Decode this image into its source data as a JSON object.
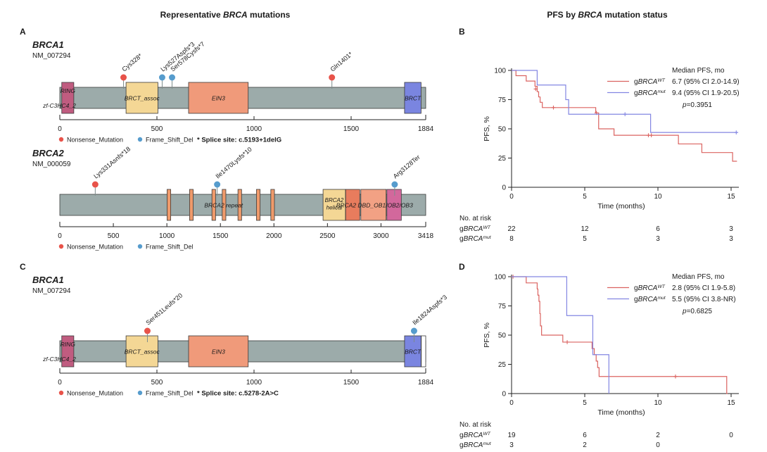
{
  "titles": {
    "left": {
      "prefix": "Representative ",
      "gene": "BRCA",
      "suffix": " mutations"
    },
    "right": {
      "prefix": "PFS by ",
      "gene": "BRCA",
      "suffix": " mutation status"
    }
  },
  "colors": {
    "protein_bar": "#9cabaa",
    "nonsense": "#e8534a",
    "frameshift": "#569ccd",
    "km_wt": "#db6360",
    "km_mut": "#8386e2"
  },
  "chart_data": [
    {
      "type": "lollipop",
      "panel": "A",
      "gene": "BRCA1",
      "transcript": "NM_007294",
      "protein_length": 1884,
      "xticks": [
        0,
        500,
        1000,
        1500,
        1884
      ],
      "mutations": [
        {
          "label": "Cys328*",
          "position": 328,
          "type": "Nonsense_Mutation"
        },
        {
          "label": "Lys527Aspfs*3",
          "position": 527,
          "type": "Frame_Shift_Del"
        },
        {
          "label": "Ser578Cysfs*7",
          "position": 578,
          "type": "Frame_Shift_Del"
        },
        {
          "label": "Gln1401*",
          "position": 1401,
          "type": "Nonsense_Mutation"
        }
      ],
      "domains": [
        {
          "name": "RING",
          "start": 10,
          "end": 72,
          "color": "#c05c80",
          "label": "RING",
          "label_below": "zf-C3HC4_2"
        },
        {
          "name": "BRCT_assoc",
          "start": 341,
          "end": 505,
          "color": "#f4d795",
          "label": "BRCT_assoc"
        },
        {
          "name": "EIN3",
          "start": 663,
          "end": 970,
          "color": "#f09a7a",
          "label": "EIN3"
        },
        {
          "name": "BRCT",
          "start": 1775,
          "end": 1860,
          "color": "#7a85e0",
          "label": "BRCT"
        }
      ],
      "overlay_labels": [],
      "legend": [
        {
          "label": "Nonsense_Mutation",
          "color": "#e8534a"
        },
        {
          "label": "Frame_Shift_Del",
          "color": "#569ccd"
        }
      ],
      "footnote": "* Splice site: c.5193+1delG"
    },
    {
      "type": "lollipop",
      "panel": "A",
      "gene": "BRCA2",
      "transcript": "NM_000059",
      "protein_length": 3418,
      "xticks": [
        0,
        500,
        1000,
        1500,
        2000,
        2500,
        3000,
        3418
      ],
      "mutations": [
        {
          "label": "Lys331Asnfs*18",
          "position": 331,
          "type": "Nonsense_Mutation"
        },
        {
          "label": "Ile1470Lysfs*10",
          "position": 1470,
          "type": "Frame_Shift_Del"
        },
        {
          "label": "Arg3128Ter",
          "position": 3128,
          "type": "Frame_Shift_Del"
        }
      ],
      "domains": [
        {
          "name": "BRCA2_repeat_1",
          "start": 1002,
          "end": 1036,
          "color": "#ef9a6b",
          "label": ""
        },
        {
          "name": "BRCA2_repeat_2",
          "start": 1212,
          "end": 1246,
          "color": "#ef9a6b",
          "label": ""
        },
        {
          "name": "BRCA2_repeat_3",
          "start": 1421,
          "end": 1455,
          "color": "#ef9a6b",
          "label": ""
        },
        {
          "name": "BRCA2_repeat_4",
          "start": 1517,
          "end": 1551,
          "color": "#ef9a6b",
          "label": ""
        },
        {
          "name": "BRCA2_repeat_5",
          "start": 1664,
          "end": 1698,
          "color": "#ef9a6b",
          "label": ""
        },
        {
          "name": "BRCA2_repeat_6",
          "start": 1837,
          "end": 1871,
          "color": "#ef9a6b",
          "label": ""
        },
        {
          "name": "BRCA2_repeat_7",
          "start": 1971,
          "end": 2005,
          "color": "#ef9a6b",
          "label": ""
        },
        {
          "name": "BRCA2_helical",
          "start": 2459,
          "end": 2668,
          "color": "#f4d795",
          "label": "BRCA2\nhelical"
        },
        {
          "name": "BRCA2_DBD_OB1",
          "start": 2670,
          "end": 2802,
          "color": "#e87c5d",
          "label": ""
        },
        {
          "name": "BRCA2_DBD_OB2",
          "start": 2812,
          "end": 3048,
          "color": "#f2a184",
          "label": ""
        },
        {
          "name": "BRCA2_DBD_OB3",
          "start": 3055,
          "end": 3190,
          "color": "#d2689c",
          "label": ""
        }
      ],
      "overlay_labels": [
        {
          "text": "BRCA2 repeat",
          "position": 1530
        },
        {
          "text": "BRCA2 DBD_OB1/OB2/OB3",
          "position": 2940
        }
      ],
      "legend": [
        {
          "label": "Nonsense_Mutation",
          "color": "#e8534a"
        },
        {
          "label": "Frame_Shift_Del",
          "color": "#569ccd"
        }
      ],
      "footnote": ""
    },
    {
      "type": "km",
      "panel": "B",
      "ylabel": "PFS, %",
      "xlabel": "Time (months)",
      "xticks": [
        0,
        5,
        10,
        15
      ],
      "yticks": [
        0,
        25,
        50,
        75,
        100
      ],
      "legend_header": "Median PFS, mo",
      "p_value": "p=0.3951",
      "risk_title": "No. at risk",
      "series": [
        {
          "group": {
            "pre": "g",
            "gene": "BRCA",
            "sup": "WT"
          },
          "color": "#db6360",
          "median": "6.7 (95% CI 2.0-14.9)",
          "steps": [
            [
              0,
              100
            ],
            [
              0.3,
              95.5
            ],
            [
              1.0,
              90.9
            ],
            [
              1.6,
              86.4
            ],
            [
              1.75,
              81.8
            ],
            [
              1.85,
              77.3
            ],
            [
              1.95,
              72.7
            ],
            [
              2.1,
              68.2
            ],
            [
              5.75,
              63.6
            ],
            [
              5.95,
              50
            ],
            [
              7.0,
              44.5
            ],
            [
              11.4,
              37.1
            ],
            [
              13.0,
              29.7
            ],
            [
              15.1,
              22.3
            ]
          ],
          "end": 15.4,
          "censors": [
            [
              1.65,
              84.1
            ],
            [
              2.86,
              68.2
            ],
            [
              5.8,
              63.6
            ],
            [
              9.35,
              44.5
            ],
            [
              9.55,
              44.5
            ]
          ],
          "at_risk": [
            "22",
            "12",
            "6",
            "3"
          ]
        },
        {
          "group": {
            "pre": "g",
            "gene": "BRCA",
            "sup": "mut"
          },
          "color": "#8386e2",
          "median": "9.4 (95% CI 1.9-20.5)",
          "steps": [
            [
              0,
              100
            ],
            [
              1.75,
              87.5
            ],
            [
              3.7,
              75
            ],
            [
              3.9,
              62.5
            ],
            [
              9.5,
              46.9
            ]
          ],
          "end": 15.45,
          "censors": [
            [
              7.75,
              62.5
            ],
            [
              15.35,
              46.9
            ]
          ],
          "at_risk": [
            "8",
            "5",
            "3",
            "3"
          ]
        }
      ]
    },
    {
      "type": "lollipop",
      "panel": "C",
      "gene": "BRCA1",
      "transcript": "NM_007294",
      "protein_length": 1884,
      "xticks": [
        0,
        500,
        1000,
        1500,
        1884
      ],
      "mutations": [
        {
          "label": "Ser451Leufs*20",
          "position": 451,
          "type": "Nonsense_Mutation"
        },
        {
          "label": "Ile1824Aspfs*3",
          "position": 1824,
          "type": "Frame_Shift_Del"
        }
      ],
      "domains": [
        {
          "name": "RING",
          "start": 10,
          "end": 72,
          "color": "#c05c80",
          "label": "RING",
          "label_below": "zf-C3HC4_2"
        },
        {
          "name": "BRCT_assoc",
          "start": 341,
          "end": 505,
          "color": "#f4d795",
          "label": "BRCT_assoc"
        },
        {
          "name": "EIN3",
          "start": 663,
          "end": 970,
          "color": "#f09a7a",
          "label": "EIN3"
        },
        {
          "name": "BRCT",
          "start": 1775,
          "end": 1860,
          "color": "#7a85e0",
          "label": "BRCT"
        },
        {
          "name": "terminal_segment",
          "start": 1861,
          "end": 1884,
          "color": "#ffffff",
          "label": ""
        }
      ],
      "overlay_labels": [],
      "legend": [
        {
          "label": "Nonsense_Mutation",
          "color": "#e8534a"
        },
        {
          "label": "Frame_Shift_Del",
          "color": "#569ccd"
        }
      ],
      "footnote": "* Splice site: c.5278-2A>C"
    },
    {
      "type": "km",
      "panel": "D",
      "ylabel": "PFS, %",
      "xlabel": "Time (months)",
      "xticks": [
        0,
        5,
        10,
        15
      ],
      "yticks": [
        0,
        25,
        50,
        75,
        100
      ],
      "legend_header": "Median PFS, mo",
      "p_value": "p=0.6825",
      "risk_title": "No. at risk",
      "series": [
        {
          "group": {
            "pre": "g",
            "gene": "BRCA",
            "sup": "WT"
          },
          "color": "#db6360",
          "median": "2.8 (95% CI 1.9-5.8)",
          "steps": [
            [
              0,
              100
            ],
            [
              1.0,
              94.7
            ],
            [
              1.75,
              89.5
            ],
            [
              1.8,
              84.2
            ],
            [
              1.87,
              78.9
            ],
            [
              1.93,
              68.4
            ],
            [
              1.97,
              57.9
            ],
            [
              2.05,
              50
            ],
            [
              3.5,
              44
            ],
            [
              5.5,
              38.5
            ],
            [
              5.65,
              33.3
            ],
            [
              5.78,
              27.8
            ],
            [
              5.88,
              22.2
            ],
            [
              5.98,
              14.6
            ],
            [
              14.7,
              0
            ]
          ],
          "end": 14.75,
          "censors": [
            [
              0.1,
              100
            ],
            [
              3.8,
              44
            ],
            [
              11.2,
              14.6
            ]
          ],
          "at_risk": [
            "19",
            "6",
            "2",
            "0"
          ]
        },
        {
          "group": {
            "pre": "g",
            "gene": "BRCA",
            "sup": "mut"
          },
          "color": "#8386e2",
          "median": "5.5 (95% CI 3.8-NR)",
          "steps": [
            [
              0,
              100
            ],
            [
              3.77,
              66.7
            ],
            [
              5.55,
              33.3
            ],
            [
              6.65,
              0
            ]
          ],
          "end": 6.65,
          "censors": [],
          "at_risk": [
            "3",
            "2",
            "0",
            ""
          ]
        }
      ]
    }
  ]
}
